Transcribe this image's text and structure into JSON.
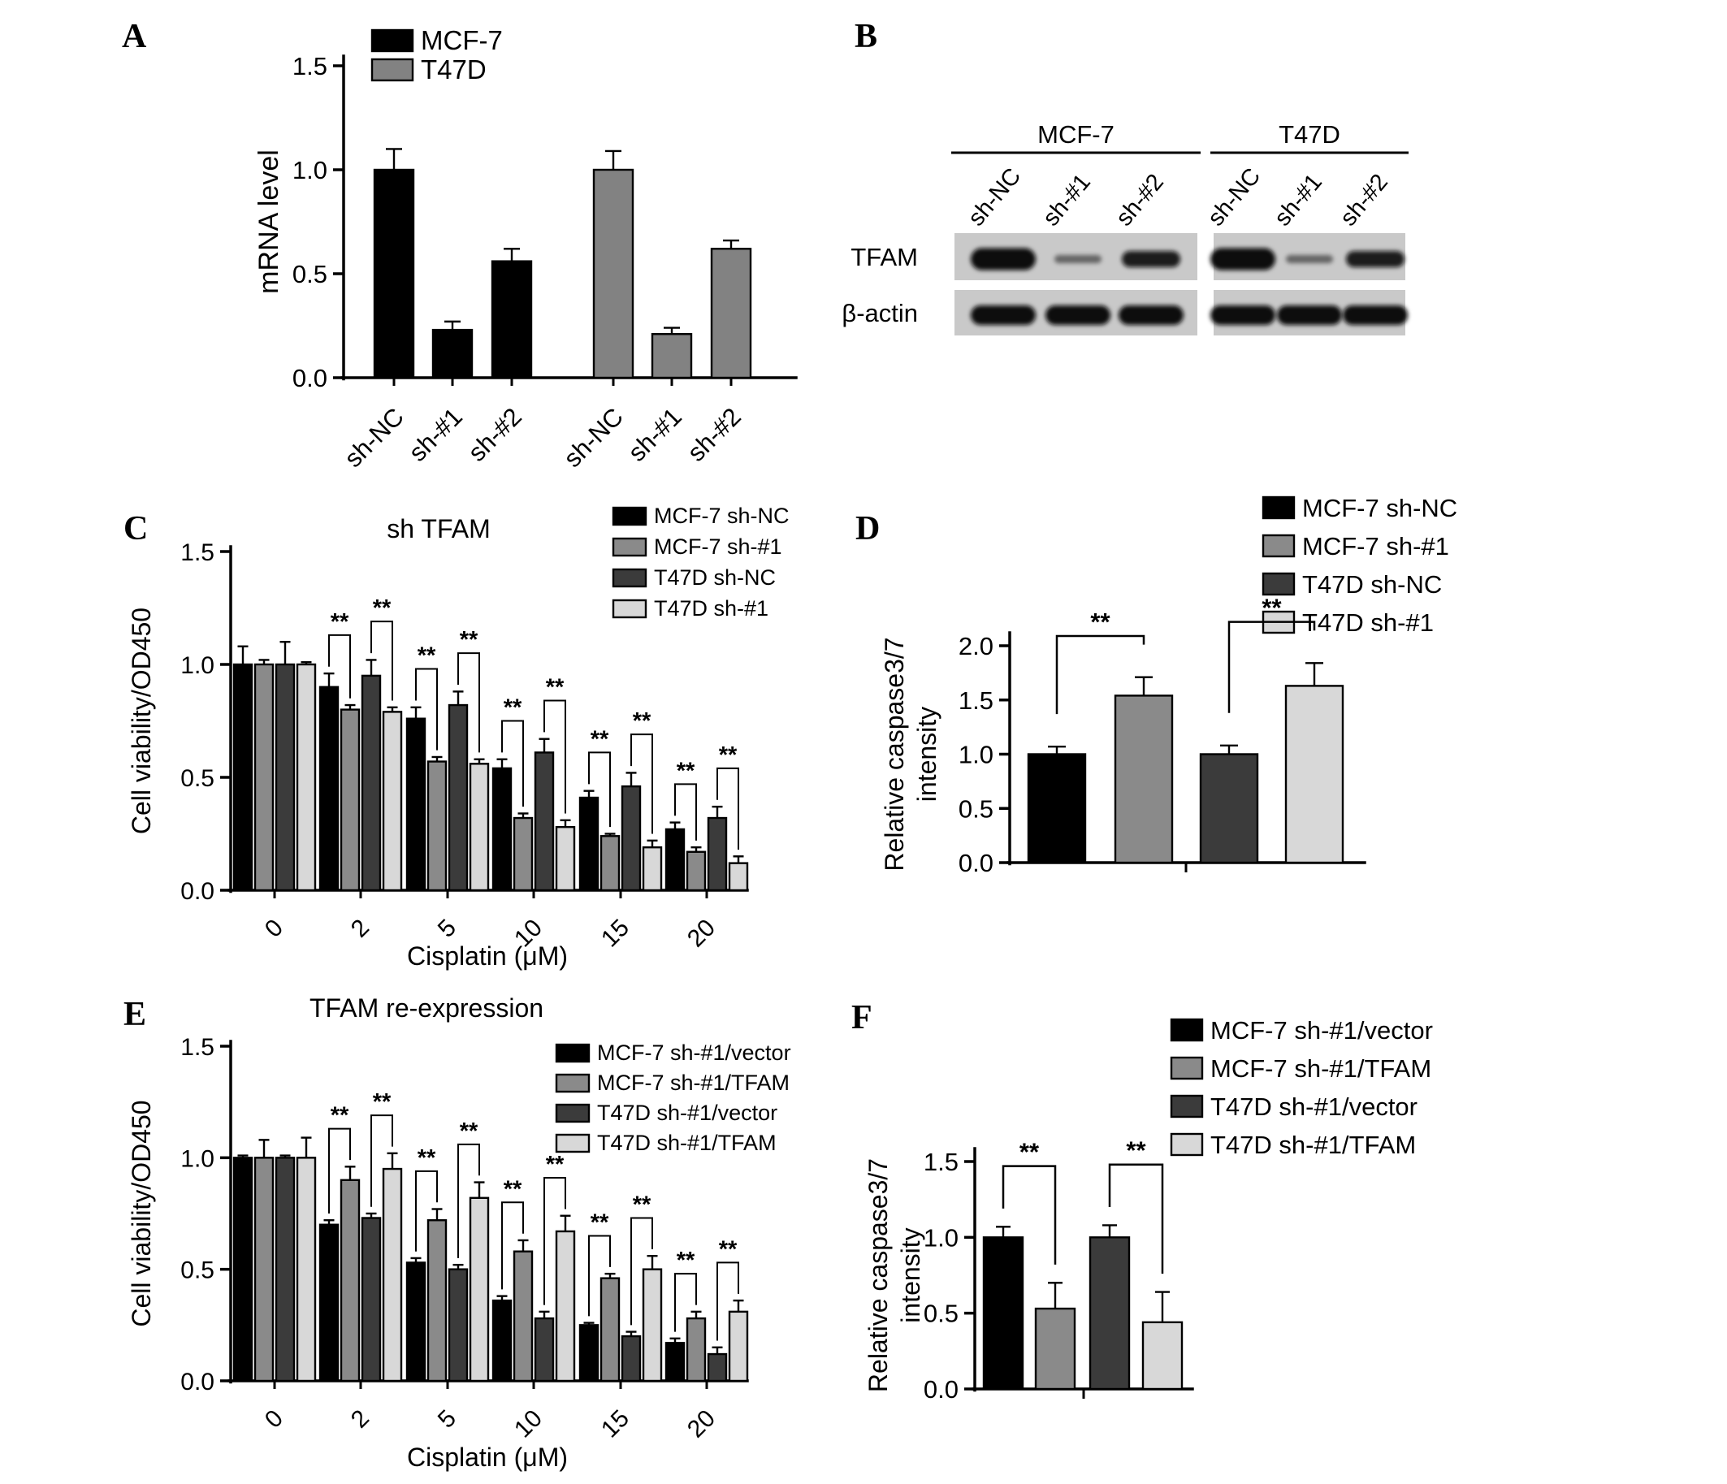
{
  "figure": {
    "background": "#ffffff",
    "panel_labels": {
      "A": "A",
      "B": "B",
      "C": "C",
      "D": "D",
      "E": "E",
      "F": "F"
    }
  },
  "colors": {
    "black": "#000000",
    "gray_medium": "#8a8a8a",
    "gray_dark": "#3b3b3b",
    "gray_light": "#d8d8d8",
    "gray_t47d": "#828282",
    "blot_background": "#c9c9c9",
    "band": "#0a0a0a"
  },
  "western_blot": {
    "groups": [
      {
        "name": "MCF-7",
        "lanes": [
          "sh-NC",
          "sh-#1",
          "sh-#2"
        ]
      },
      {
        "name": "T47D",
        "lanes": [
          "sh-NC",
          "sh-#1",
          "sh-#2"
        ]
      }
    ],
    "rows": [
      {
        "label": "TFAM",
        "bands": [
          [
            "strong",
            "weak",
            "medium"
          ],
          [
            "strong",
            "weak",
            "medium"
          ]
        ]
      },
      {
        "label": "β-actin",
        "bands": [
          [
            "strong",
            "strong",
            "strong"
          ],
          [
            "strong",
            "strong",
            "strong"
          ]
        ]
      }
    ]
  },
  "chart_data": [
    {
      "id": "A",
      "type": "bar",
      "ylabel": "mRNA level",
      "ylim": [
        0,
        1.5
      ],
      "yticks": [
        "0.0",
        "0.5",
        "1.0",
        "1.5"
      ],
      "legend": [
        {
          "label": "MCF-7",
          "color": "#000000"
        },
        {
          "label": "T47D",
          "color": "#828282"
        }
      ],
      "bars": [
        {
          "category": "sh-NC",
          "group": "MCF-7",
          "value": 1.0,
          "error": 0.1,
          "color": "#000000"
        },
        {
          "category": "sh-#1",
          "group": "MCF-7",
          "value": 0.23,
          "error": 0.04,
          "color": "#000000"
        },
        {
          "category": "sh-#2",
          "group": "MCF-7",
          "value": 0.56,
          "error": 0.06,
          "color": "#000000"
        },
        {
          "category": "sh-NC",
          "group": "T47D",
          "value": 1.0,
          "error": 0.09,
          "color": "#828282"
        },
        {
          "category": "sh-#1",
          "group": "T47D",
          "value": 0.21,
          "error": 0.03,
          "color": "#828282"
        },
        {
          "category": "sh-#2",
          "group": "T47D",
          "value": 0.62,
          "error": 0.04,
          "color": "#828282"
        }
      ]
    },
    {
      "id": "C",
      "type": "grouped_bar",
      "title": "sh TFAM",
      "xlabel": "Cisplatin (μM)",
      "ylabel": "Cell viability/OD450",
      "ylim": [
        0,
        1.5
      ],
      "yticks": [
        "0.0",
        "0.5",
        "1.0",
        "1.5"
      ],
      "categories": [
        "0",
        "2",
        "5",
        "10",
        "15",
        "20"
      ],
      "series": [
        {
          "name": "MCF-7 sh-NC",
          "color": "#000000",
          "values": [
            1.0,
            0.9,
            0.76,
            0.54,
            0.41,
            0.27
          ],
          "errors": [
            0.08,
            0.06,
            0.05,
            0.04,
            0.03,
            0.03
          ]
        },
        {
          "name": "MCF-7 sh-#1",
          "color": "#8a8a8a",
          "values": [
            1.0,
            0.8,
            0.57,
            0.32,
            0.24,
            0.17
          ],
          "errors": [
            0.02,
            0.02,
            0.02,
            0.02,
            0.01,
            0.02
          ]
        },
        {
          "name": "T47D sh-NC",
          "color": "#3b3b3b",
          "values": [
            1.0,
            0.95,
            0.82,
            0.61,
            0.46,
            0.32
          ],
          "errors": [
            0.1,
            0.07,
            0.06,
            0.06,
            0.06,
            0.05
          ]
        },
        {
          "name": "T47D sh-#1",
          "color": "#d8d8d8",
          "values": [
            1.0,
            0.79,
            0.56,
            0.28,
            0.19,
            0.12
          ],
          "errors": [
            0.01,
            0.02,
            0.02,
            0.03,
            0.03,
            0.03
          ]
        }
      ],
      "significance": [
        {
          "category_index": 1,
          "pair": [
            0,
            1
          ],
          "label": "**"
        },
        {
          "category_index": 1,
          "pair": [
            2,
            3
          ],
          "label": "**"
        },
        {
          "category_index": 2,
          "pair": [
            0,
            1
          ],
          "label": "**"
        },
        {
          "category_index": 2,
          "pair": [
            2,
            3
          ],
          "label": "**"
        },
        {
          "category_index": 3,
          "pair": [
            0,
            1
          ],
          "label": "**"
        },
        {
          "category_index": 3,
          "pair": [
            2,
            3
          ],
          "label": "**"
        },
        {
          "category_index": 4,
          "pair": [
            0,
            1
          ],
          "label": "**"
        },
        {
          "category_index": 4,
          "pair": [
            2,
            3
          ],
          "label": "**"
        },
        {
          "category_index": 5,
          "pair": [
            0,
            1
          ],
          "label": "**"
        },
        {
          "category_index": 5,
          "pair": [
            2,
            3
          ],
          "label": "**"
        }
      ]
    },
    {
      "id": "D",
      "type": "bar",
      "ylabel_lines": [
        "Relative caspase3/7",
        "intensity"
      ],
      "ylim": [
        0,
        2.0
      ],
      "yticks": [
        "0.0",
        "0.5",
        "1.0",
        "1.5",
        "2.0"
      ],
      "legend": [
        {
          "label": "MCF-7 sh-NC",
          "color": "#000000"
        },
        {
          "label": "MCF-7 sh-#1",
          "color": "#8a8a8a"
        },
        {
          "label": "T47D sh-NC",
          "color": "#3b3b3b"
        },
        {
          "label": "T47D sh-#1",
          "color": "#d8d8d8"
        }
      ],
      "bars": [
        {
          "label": "MCF-7 sh-NC",
          "value": 1.0,
          "error": 0.07,
          "color": "#000000"
        },
        {
          "label": "MCF-7 sh-#1",
          "value": 1.54,
          "error": 0.17,
          "color": "#8a8a8a"
        },
        {
          "label": "T47D sh-NC",
          "value": 1.0,
          "error": 0.08,
          "color": "#3b3b3b"
        },
        {
          "label": "T47D sh-#1",
          "value": 1.63,
          "error": 0.21,
          "color": "#d8d8d8"
        }
      ],
      "significance": [
        {
          "pair": [
            0,
            1
          ],
          "label": "**"
        },
        {
          "pair": [
            2,
            3
          ],
          "label": "**"
        }
      ]
    },
    {
      "id": "E",
      "type": "grouped_bar",
      "title": "TFAM re-expression",
      "xlabel": "Cisplatin (μM)",
      "ylabel": "Cell viability/OD450",
      "ylim": [
        0,
        1.5
      ],
      "yticks": [
        "0.0",
        "0.5",
        "1.0",
        "1.5"
      ],
      "categories": [
        "0",
        "2",
        "5",
        "10",
        "15",
        "20"
      ],
      "series": [
        {
          "name": "MCF-7 sh-#1/vector",
          "color": "#000000",
          "values": [
            1.0,
            0.7,
            0.53,
            0.36,
            0.25,
            0.17
          ],
          "errors": [
            0.01,
            0.02,
            0.02,
            0.02,
            0.01,
            0.02
          ]
        },
        {
          "name": "MCF-7 sh-#1/TFAM",
          "color": "#8a8a8a",
          "values": [
            1.0,
            0.9,
            0.72,
            0.58,
            0.46,
            0.28
          ],
          "errors": [
            0.08,
            0.06,
            0.05,
            0.05,
            0.02,
            0.03
          ]
        },
        {
          "name": "T47D sh-#1/vector",
          "color": "#3b3b3b",
          "values": [
            1.0,
            0.73,
            0.5,
            0.28,
            0.2,
            0.12
          ],
          "errors": [
            0.01,
            0.02,
            0.02,
            0.03,
            0.02,
            0.03
          ]
        },
        {
          "name": "T47D sh-#1/TFAM",
          "color": "#d8d8d8",
          "values": [
            1.0,
            0.95,
            0.82,
            0.67,
            0.5,
            0.31
          ],
          "errors": [
            0.09,
            0.07,
            0.07,
            0.07,
            0.06,
            0.05
          ]
        }
      ],
      "significance": [
        {
          "category_index": 1,
          "pair": [
            0,
            1
          ],
          "label": "**"
        },
        {
          "category_index": 1,
          "pair": [
            2,
            3
          ],
          "label": "**"
        },
        {
          "category_index": 2,
          "pair": [
            0,
            1
          ],
          "label": "**"
        },
        {
          "category_index": 2,
          "pair": [
            2,
            3
          ],
          "label": "**"
        },
        {
          "category_index": 3,
          "pair": [
            0,
            1
          ],
          "label": "**"
        },
        {
          "category_index": 3,
          "pair": [
            2,
            3
          ],
          "label": "**"
        },
        {
          "category_index": 4,
          "pair": [
            0,
            1
          ],
          "label": "**"
        },
        {
          "category_index": 4,
          "pair": [
            2,
            3
          ],
          "label": "**"
        },
        {
          "category_index": 5,
          "pair": [
            0,
            1
          ],
          "label": "**"
        },
        {
          "category_index": 5,
          "pair": [
            2,
            3
          ],
          "label": "**"
        }
      ]
    },
    {
      "id": "F",
      "type": "bar",
      "ylabel_lines": [
        "Relative caspase3/7",
        "intensity"
      ],
      "ylim": [
        0,
        1.5
      ],
      "yticks": [
        "0.0",
        "0.5",
        "1.0",
        "1.5"
      ],
      "legend": [
        {
          "label": "MCF-7 sh-#1/vector",
          "color": "#000000"
        },
        {
          "label": "MCF-7 sh-#1/TFAM",
          "color": "#8a8a8a"
        },
        {
          "label": "T47D sh-#1/vector",
          "color": "#3b3b3b"
        },
        {
          "label": "T47D sh-#1/TFAM",
          "color": "#d8d8d8"
        }
      ],
      "bars": [
        {
          "label": "MCF-7 sh-#1/vector",
          "value": 1.0,
          "error": 0.07,
          "color": "#000000"
        },
        {
          "label": "MCF-7 sh-#1/TFAM",
          "value": 0.53,
          "error": 0.17,
          "color": "#8a8a8a"
        },
        {
          "label": "T47D sh-#1/vector",
          "value": 1.0,
          "error": 0.08,
          "color": "#3b3b3b"
        },
        {
          "label": "T47D sh-#1/TFAM",
          "value": 0.44,
          "error": 0.2,
          "color": "#d8d8d8"
        }
      ],
      "significance": [
        {
          "pair": [
            0,
            1
          ],
          "label": "**"
        },
        {
          "pair": [
            2,
            3
          ],
          "label": "**"
        }
      ]
    }
  ]
}
